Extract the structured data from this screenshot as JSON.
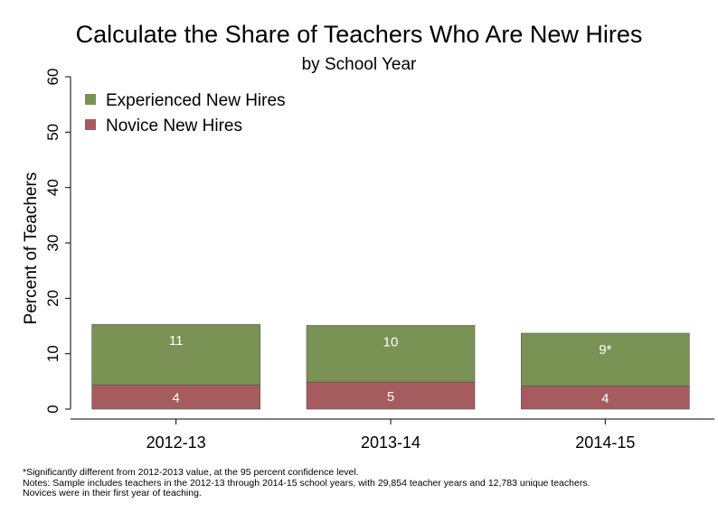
{
  "chart_data": {
    "type": "bar",
    "stacked": true,
    "title": "Calculate the Share of Teachers Who Are New Hires",
    "subtitle": "by School Year",
    "xlabel": "",
    "ylabel": "Percent of Teachers",
    "ylim": [
      0,
      60
    ],
    "yticks": [
      "0",
      "10",
      "20",
      "30",
      "40",
      "50",
      "60"
    ],
    "categories": [
      "2012-13",
      "2013-14",
      "2014-15"
    ],
    "grid": false,
    "legend_position": "top-left",
    "series": [
      {
        "name": "Novice New Hires",
        "color": "#a65b5e",
        "values": [
          4.4,
          4.9,
          4.2
        ],
        "labels": [
          "4",
          "5",
          "4"
        ]
      },
      {
        "name": "Experienced New Hires",
        "color": "#7a9254",
        "values": [
          10.9,
          10.2,
          9.5
        ],
        "labels": [
          "11",
          "10",
          "9*"
        ]
      }
    ],
    "legend_order": [
      "Experienced New Hires",
      "Novice New Hires"
    ]
  },
  "notes": {
    "line1": "*Significantly different from 2012-2013 value, at the 95 percent confidence level.",
    "line2": "Notes: Sample includes teachers in the 2012-13 through 2014-15 school years, with 29,854 teacher years and 12,783 unique teachers.",
    "line3": "Novices were in their first year of teaching."
  }
}
